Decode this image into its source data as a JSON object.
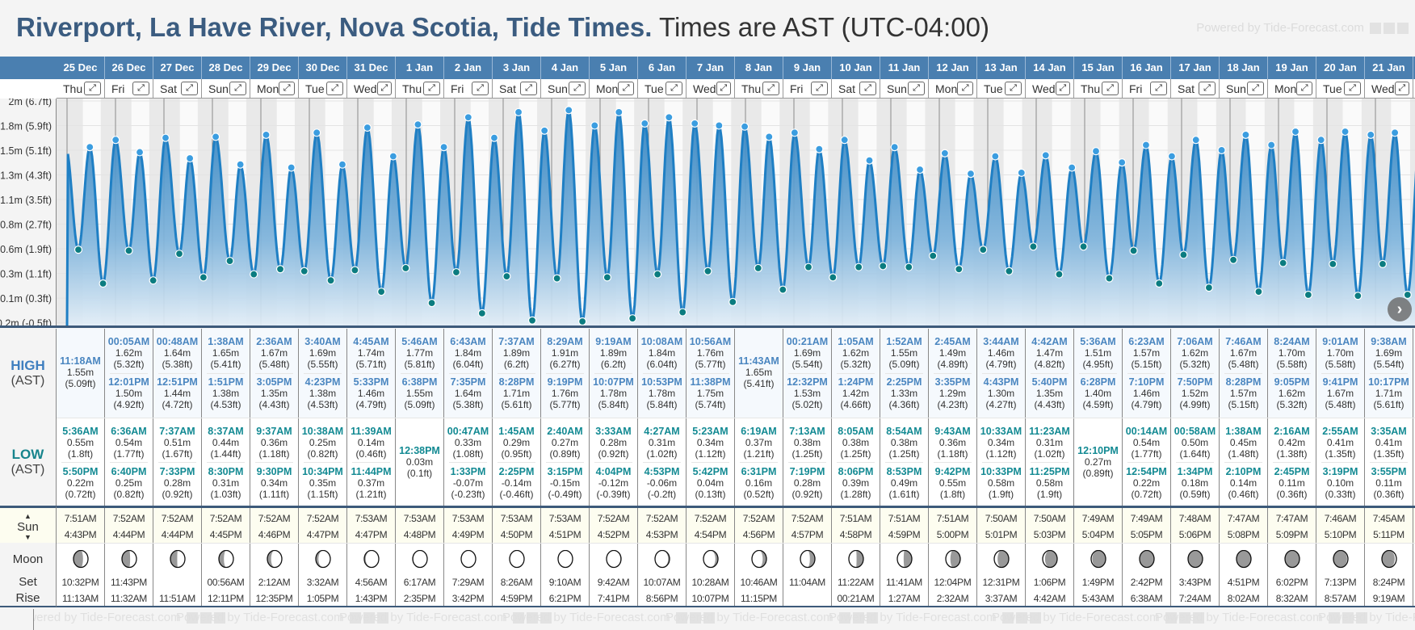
{
  "title": {
    "location": "Riverport, La Have River, Nova Scotia, Tide Times.",
    "timezone": "Times are AST (UTC-04:00)"
  },
  "powered": "Powered by Tide-Forecast.com",
  "labels": {
    "high": "HIGH",
    "high_sub": "(AST)",
    "low": "LOW",
    "low_sub": "(AST)",
    "sun": "Sun",
    "sun_up": "▲",
    "sun_down": "▼",
    "moon": "Moon",
    "set": "Set",
    "rise": "Rise",
    "expand": "⤢",
    "next": "›"
  },
  "colors": {
    "header": "#4a7fb0",
    "title": "#3b5c80",
    "high_time": "#4a86c0",
    "low_time": "#138a93",
    "curve": "#1f7fc4",
    "high_marker": "#3b9de0",
    "low_marker": "#0b7c80"
  },
  "y_axis": [
    "2m (6.7ft)",
    "1.8m (5.9ft)",
    "1.5m (5.1ft)",
    "1.3m (4.3ft)",
    "1.1m (3.5ft)",
    "0.8m (2.7ft)",
    "0.6m (1.9ft)",
    "0.3m (1.1ft)",
    "0.1m (0.3ft)",
    "-0.2m (-0.5ft)"
  ],
  "days": [
    {
      "date": "25 Dec",
      "dow": "Thu",
      "highs": [
        {
          "time": "11:18AM",
          "m": "1.55m",
          "ft": "5.09ft"
        }
      ],
      "lows": [
        {
          "time": "5:36AM",
          "m": "0.55m",
          "ft": "1.8ft"
        },
        {
          "time": "5:50PM",
          "m": "0.22m",
          "ft": "0.72ft"
        }
      ],
      "sun": {
        "rise": "7:51AM",
        "set": "4:43PM"
      },
      "moon": {
        "set": "10:32PM",
        "rise": "11:13AM",
        "phase": 0.2
      }
    },
    {
      "date": "26 Dec",
      "dow": "Fri",
      "highs": [
        {
          "time": "00:05AM",
          "m": "1.62m",
          "ft": "5.32ft"
        },
        {
          "time": "12:01PM",
          "m": "1.50m",
          "ft": "4.92ft"
        }
      ],
      "lows": [
        {
          "time": "6:36AM",
          "m": "0.54m",
          "ft": "1.77ft"
        },
        {
          "time": "6:40PM",
          "m": "0.25m",
          "ft": "0.82ft"
        }
      ],
      "sun": {
        "rise": "7:52AM",
        "set": "4:44PM"
      },
      "moon": {
        "set": "11:43PM",
        "rise": "11:32AM",
        "phase": 0.23
      }
    },
    {
      "date": "27 Dec",
      "dow": "Sat",
      "highs": [
        {
          "time": "00:48AM",
          "m": "1.64m",
          "ft": "5.38ft"
        },
        {
          "time": "12:51PM",
          "m": "1.44m",
          "ft": "4.72ft"
        }
      ],
      "lows": [
        {
          "time": "7:37AM",
          "m": "0.51m",
          "ft": "1.67ft"
        },
        {
          "time": "7:33PM",
          "m": "0.28m",
          "ft": "0.92ft"
        }
      ],
      "sun": {
        "rise": "7:52AM",
        "set": "4:44PM"
      },
      "moon": {
        "set": "",
        "rise": "11:51AM",
        "phase": 0.26
      }
    },
    {
      "date": "28 Dec",
      "dow": "Sun",
      "highs": [
        {
          "time": "1:38AM",
          "m": "1.65m",
          "ft": "5.41ft"
        },
        {
          "time": "1:51PM",
          "m": "1.38m",
          "ft": "4.53ft"
        }
      ],
      "lows": [
        {
          "time": "8:37AM",
          "m": "0.44m",
          "ft": "1.44ft"
        },
        {
          "time": "8:30PM",
          "m": "0.31m",
          "ft": "1.03ft"
        }
      ],
      "sun": {
        "rise": "7:52AM",
        "set": "4:45PM"
      },
      "moon": {
        "set": "00:56AM",
        "rise": "12:11PM",
        "phase": 0.3
      }
    },
    {
      "date": "29 Dec",
      "dow": "Mon",
      "highs": [
        {
          "time": "2:36AM",
          "m": "1.67m",
          "ft": "5.48ft"
        },
        {
          "time": "3:05PM",
          "m": "1.35m",
          "ft": "4.43ft"
        }
      ],
      "lows": [
        {
          "time": "9:37AM",
          "m": "0.36m",
          "ft": "1.18ft"
        },
        {
          "time": "9:30PM",
          "m": "0.34m",
          "ft": "1.11ft"
        }
      ],
      "sun": {
        "rise": "7:52AM",
        "set": "4:46PM"
      },
      "moon": {
        "set": "2:12AM",
        "rise": "12:35PM",
        "phase": 0.33
      }
    },
    {
      "date": "30 Dec",
      "dow": "Tue",
      "highs": [
        {
          "time": "3:40AM",
          "m": "1.69m",
          "ft": "5.55ft"
        },
        {
          "time": "4:23PM",
          "m": "1.38m",
          "ft": "4.53ft"
        }
      ],
      "lows": [
        {
          "time": "10:38AM",
          "m": "0.25m",
          "ft": "0.82ft"
        },
        {
          "time": "10:34PM",
          "m": "0.35m",
          "ft": "1.15ft"
        }
      ],
      "sun": {
        "rise": "7:52AM",
        "set": "4:47PM"
      },
      "moon": {
        "set": "3:32AM",
        "rise": "1:05PM",
        "phase": 0.36
      }
    },
    {
      "date": "31 Dec",
      "dow": "Wed",
      "highs": [
        {
          "time": "4:45AM",
          "m": "1.74m",
          "ft": "5.71ft"
        },
        {
          "time": "5:33PM",
          "m": "1.46m",
          "ft": "4.79ft"
        }
      ],
      "lows": [
        {
          "time": "11:39AM",
          "m": "0.14m",
          "ft": "0.46ft"
        },
        {
          "time": "11:44PM",
          "m": "0.37m",
          "ft": "1.21ft"
        }
      ],
      "sun": {
        "rise": "7:53AM",
        "set": "4:47PM"
      },
      "moon": {
        "set": "4:56AM",
        "rise": "1:43PM",
        "phase": 0.4
      }
    },
    {
      "date": "1 Jan",
      "dow": "Thu",
      "highs": [
        {
          "time": "5:46AM",
          "m": "1.77m",
          "ft": "5.81ft"
        },
        {
          "time": "6:38PM",
          "m": "1.55m",
          "ft": "5.09ft"
        }
      ],
      "lows": [
        {
          "time": "12:38PM",
          "m": "0.03m",
          "ft": "0.1ft"
        }
      ],
      "sun": {
        "rise": "7:53AM",
        "set": "4:48PM"
      },
      "moon": {
        "set": "6:17AM",
        "rise": "2:35PM",
        "phase": 0.43
      }
    },
    {
      "date": "2 Jan",
      "dow": "Fri",
      "highs": [
        {
          "time": "6:43AM",
          "m": "1.84m",
          "ft": "6.04ft"
        },
        {
          "time": "7:35PM",
          "m": "1.64m",
          "ft": "5.38ft"
        }
      ],
      "lows": [
        {
          "time": "00:47AM",
          "m": "0.33m",
          "ft": "1.08ft"
        },
        {
          "time": "1:33PM",
          "m": "-0.07m",
          "ft": "-0.23ft"
        }
      ],
      "sun": {
        "rise": "7:53AM",
        "set": "4:49PM"
      },
      "moon": {
        "set": "7:29AM",
        "rise": "3:42PM",
        "phase": 0.47
      }
    },
    {
      "date": "3 Jan",
      "dow": "Sat",
      "highs": [
        {
          "time": "7:37AM",
          "m": "1.89m",
          "ft": "6.2ft"
        },
        {
          "time": "8:28PM",
          "m": "1.71m",
          "ft": "5.61ft"
        }
      ],
      "lows": [
        {
          "time": "1:45AM",
          "m": "0.29m",
          "ft": "0.95ft"
        },
        {
          "time": "2:25PM",
          "m": "-0.14m",
          "ft": "-0.46ft"
        }
      ],
      "sun": {
        "rise": "7:53AM",
        "set": "4:50PM"
      },
      "moon": {
        "set": "8:26AM",
        "rise": "4:59PM",
        "phase": 0.5
      }
    },
    {
      "date": "4 Jan",
      "dow": "Sun",
      "highs": [
        {
          "time": "8:29AM",
          "m": "1.91m",
          "ft": "6.27ft"
        },
        {
          "time": "9:19PM",
          "m": "1.76m",
          "ft": "5.77ft"
        }
      ],
      "lows": [
        {
          "time": "2:40AM",
          "m": "0.27m",
          "ft": "0.89ft"
        },
        {
          "time": "3:15PM",
          "m": "-0.15m",
          "ft": "-0.49ft"
        }
      ],
      "sun": {
        "rise": "7:53AM",
        "set": "4:51PM"
      },
      "moon": {
        "set": "9:10AM",
        "rise": "6:21PM",
        "phase": 0.53
      }
    },
    {
      "date": "5 Jan",
      "dow": "Mon",
      "highs": [
        {
          "time": "9:19AM",
          "m": "1.89m",
          "ft": "6.2ft"
        },
        {
          "time": "10:07PM",
          "m": "1.78m",
          "ft": "5.84ft"
        }
      ],
      "lows": [
        {
          "time": "3:33AM",
          "m": "0.28m",
          "ft": "0.92ft"
        },
        {
          "time": "4:04PM",
          "m": "-0.12m",
          "ft": "-0.39ft"
        }
      ],
      "sun": {
        "rise": "7:52AM",
        "set": "4:52PM"
      },
      "moon": {
        "set": "9:42AM",
        "rise": "7:41PM",
        "phase": 0.57
      }
    },
    {
      "date": "6 Jan",
      "dow": "Tue",
      "highs": [
        {
          "time": "10:08AM",
          "m": "1.84m",
          "ft": "6.04ft"
        },
        {
          "time": "10:53PM",
          "m": "1.78m",
          "ft": "5.84ft"
        }
      ],
      "lows": [
        {
          "time": "4:27AM",
          "m": "0.31m",
          "ft": "1.02ft"
        },
        {
          "time": "4:53PM",
          "m": "-0.06m",
          "ft": "-0.2ft"
        }
      ],
      "sun": {
        "rise": "7:52AM",
        "set": "4:53PM"
      },
      "moon": {
        "set": "10:07AM",
        "rise": "8:56PM",
        "phase": 0.6
      }
    },
    {
      "date": "7 Jan",
      "dow": "Wed",
      "highs": [
        {
          "time": "10:56AM",
          "m": "1.76m",
          "ft": "5.77ft"
        },
        {
          "time": "11:38PM",
          "m": "1.75m",
          "ft": "5.74ft"
        }
      ],
      "lows": [
        {
          "time": "5:23AM",
          "m": "0.34m",
          "ft": "1.12ft"
        },
        {
          "time": "5:42PM",
          "m": "0.04m",
          "ft": "0.13ft"
        }
      ],
      "sun": {
        "rise": "7:52AM",
        "set": "4:54PM"
      },
      "moon": {
        "set": "10:28AM",
        "rise": "10:07PM",
        "phase": 0.64
      }
    },
    {
      "date": "8 Jan",
      "dow": "Thu",
      "highs": [
        {
          "time": "11:43AM",
          "m": "1.65m",
          "ft": "5.41ft"
        }
      ],
      "lows": [
        {
          "time": "6:19AM",
          "m": "0.37m",
          "ft": "1.21ft"
        },
        {
          "time": "6:31PM",
          "m": "0.16m",
          "ft": "0.52ft"
        }
      ],
      "sun": {
        "rise": "7:52AM",
        "set": "4:56PM"
      },
      "moon": {
        "set": "10:46AM",
        "rise": "11:15PM",
        "phase": 0.67
      }
    },
    {
      "date": "9 Jan",
      "dow": "Fri",
      "highs": [
        {
          "time": "00:21AM",
          "m": "1.69m",
          "ft": "5.54ft"
        },
        {
          "time": "12:32PM",
          "m": "1.53m",
          "ft": "5.02ft"
        }
      ],
      "lows": [
        {
          "time": "7:13AM",
          "m": "0.38m",
          "ft": "1.25ft"
        },
        {
          "time": "7:19PM",
          "m": "0.28m",
          "ft": "0.92ft"
        }
      ],
      "sun": {
        "rise": "7:52AM",
        "set": "4:57PM"
      },
      "moon": {
        "set": "11:04AM",
        "rise": "",
        "phase": 0.7
      }
    },
    {
      "date": "10 Jan",
      "dow": "Sat",
      "highs": [
        {
          "time": "1:05AM",
          "m": "1.62m",
          "ft": "5.32ft"
        },
        {
          "time": "1:24PM",
          "m": "1.42m",
          "ft": "4.66ft"
        }
      ],
      "lows": [
        {
          "time": "8:05AM",
          "m": "0.38m",
          "ft": "1.25ft"
        },
        {
          "time": "8:06PM",
          "m": "0.39m",
          "ft": "1.28ft"
        }
      ],
      "sun": {
        "rise": "7:51AM",
        "set": "4:58PM"
      },
      "moon": {
        "set": "11:22AM",
        "rise": "00:21AM",
        "phase": 0.74
      }
    },
    {
      "date": "11 Jan",
      "dow": "Sun",
      "highs": [
        {
          "time": "1:52AM",
          "m": "1.55m",
          "ft": "5.09ft"
        },
        {
          "time": "2:25PM",
          "m": "1.33m",
          "ft": "4.36ft"
        }
      ],
      "lows": [
        {
          "time": "8:54AM",
          "m": "0.38m",
          "ft": "1.25ft"
        },
        {
          "time": "8:53PM",
          "m": "0.49m",
          "ft": "1.61ft"
        }
      ],
      "sun": {
        "rise": "7:51AM",
        "set": "4:59PM"
      },
      "moon": {
        "set": "11:41AM",
        "rise": "1:27AM",
        "phase": 0.77
      }
    },
    {
      "date": "12 Jan",
      "dow": "Mon",
      "highs": [
        {
          "time": "2:45AM",
          "m": "1.49m",
          "ft": "4.89ft"
        },
        {
          "time": "3:35PM",
          "m": "1.29m",
          "ft": "4.23ft"
        }
      ],
      "lows": [
        {
          "time": "9:43AM",
          "m": "0.36m",
          "ft": "1.18ft"
        },
        {
          "time": "9:42PM",
          "m": "0.55m",
          "ft": "1.8ft"
        }
      ],
      "sun": {
        "rise": "7:51AM",
        "set": "5:00PM"
      },
      "moon": {
        "set": "12:04PM",
        "rise": "2:32AM",
        "phase": 0.81
      }
    },
    {
      "date": "13 Jan",
      "dow": "Tue",
      "highs": [
        {
          "time": "3:44AM",
          "m": "1.46m",
          "ft": "4.79ft"
        },
        {
          "time": "4:43PM",
          "m": "1.30m",
          "ft": "4.27ft"
        }
      ],
      "lows": [
        {
          "time": "10:33AM",
          "m": "0.34m",
          "ft": "1.12ft"
        },
        {
          "time": "10:33PM",
          "m": "0.58m",
          "ft": "1.9ft"
        }
      ],
      "sun": {
        "rise": "7:50AM",
        "set": "5:01PM"
      },
      "moon": {
        "set": "12:31PM",
        "rise": "3:37AM",
        "phase": 0.84
      }
    },
    {
      "date": "14 Jan",
      "dow": "Wed",
      "highs": [
        {
          "time": "4:42AM",
          "m": "1.47m",
          "ft": "4.82ft"
        },
        {
          "time": "5:40PM",
          "m": "1.35m",
          "ft": "4.43ft"
        }
      ],
      "lows": [
        {
          "time": "11:23AM",
          "m": "0.31m",
          "ft": "1.02ft"
        },
        {
          "time": "11:25PM",
          "m": "0.58m",
          "ft": "1.9ft"
        }
      ],
      "sun": {
        "rise": "7:50AM",
        "set": "5:03PM"
      },
      "moon": {
        "set": "1:06PM",
        "rise": "4:42AM",
        "phase": 0.87
      }
    },
    {
      "date": "15 Jan",
      "dow": "Thu",
      "highs": [
        {
          "time": "5:36AM",
          "m": "1.51m",
          "ft": "4.95ft"
        },
        {
          "time": "6:28PM",
          "m": "1.40m",
          "ft": "4.59ft"
        }
      ],
      "lows": [
        {
          "time": "12:10PM",
          "m": "0.27m",
          "ft": "0.89ft"
        }
      ],
      "sun": {
        "rise": "7:49AM",
        "set": "5:04PM"
      },
      "moon": {
        "set": "1:49PM",
        "rise": "5:43AM",
        "phase": 0.91
      }
    },
    {
      "date": "16 Jan",
      "dow": "Fri",
      "highs": [
        {
          "time": "6:23AM",
          "m": "1.57m",
          "ft": "5.15ft"
        },
        {
          "time": "7:10PM",
          "m": "1.46m",
          "ft": "4.79ft"
        }
      ],
      "lows": [
        {
          "time": "00:14AM",
          "m": "0.54m",
          "ft": "1.77ft"
        },
        {
          "time": "12:54PM",
          "m": "0.22m",
          "ft": "0.72ft"
        }
      ],
      "sun": {
        "rise": "7:49AM",
        "set": "5:05PM"
      },
      "moon": {
        "set": "2:42PM",
        "rise": "6:38AM",
        "phase": 0.94
      }
    },
    {
      "date": "17 Jan",
      "dow": "Sat",
      "highs": [
        {
          "time": "7:06AM",
          "m": "1.62m",
          "ft": "5.32ft"
        },
        {
          "time": "7:50PM",
          "m": "1.52m",
          "ft": "4.99ft"
        }
      ],
      "lows": [
        {
          "time": "00:58AM",
          "m": "0.50m",
          "ft": "1.64ft"
        },
        {
          "time": "1:34PM",
          "m": "0.18m",
          "ft": "0.59ft"
        }
      ],
      "sun": {
        "rise": "7:48AM",
        "set": "5:06PM"
      },
      "moon": {
        "set": "3:43PM",
        "rise": "7:24AM",
        "phase": 0.98
      }
    },
    {
      "date": "18 Jan",
      "dow": "Sun",
      "highs": [
        {
          "time": "7:46AM",
          "m": "1.67m",
          "ft": "5.48ft"
        },
        {
          "time": "8:28PM",
          "m": "1.57m",
          "ft": "5.15ft"
        }
      ],
      "lows": [
        {
          "time": "1:38AM",
          "m": "0.45m",
          "ft": "1.48ft"
        },
        {
          "time": "2:10PM",
          "m": "0.14m",
          "ft": "0.46ft"
        }
      ],
      "sun": {
        "rise": "7:47AM",
        "set": "5:08PM"
      },
      "moon": {
        "set": "4:51PM",
        "rise": "8:02AM",
        "phase": 0.01
      }
    },
    {
      "date": "19 Jan",
      "dow": "Mon",
      "highs": [
        {
          "time": "8:24AM",
          "m": "1.70m",
          "ft": "5.58ft"
        },
        {
          "time": "9:05PM",
          "m": "1.62m",
          "ft": "5.32ft"
        }
      ],
      "lows": [
        {
          "time": "2:16AM",
          "m": "0.42m",
          "ft": "1.38ft"
        },
        {
          "time": "2:45PM",
          "m": "0.11m",
          "ft": "0.36ft"
        }
      ],
      "sun": {
        "rise": "7:47AM",
        "set": "5:09PM"
      },
      "moon": {
        "set": "6:02PM",
        "rise": "8:32AM",
        "phase": 0.04
      }
    },
    {
      "date": "20 Jan",
      "dow": "Tue",
      "highs": [
        {
          "time": "9:01AM",
          "m": "1.70m",
          "ft": "5.58ft"
        },
        {
          "time": "9:41PM",
          "m": "1.67m",
          "ft": "5.48ft"
        }
      ],
      "lows": [
        {
          "time": "2:55AM",
          "m": "0.41m",
          "ft": "1.35ft"
        },
        {
          "time": "3:19PM",
          "m": "0.10m",
          "ft": "0.33ft"
        }
      ],
      "sun": {
        "rise": "7:46AM",
        "set": "5:10PM"
      },
      "moon": {
        "set": "7:13PM",
        "rise": "8:57AM",
        "phase": 0.08
      }
    },
    {
      "date": "21 Jan",
      "dow": "Wed",
      "highs": [
        {
          "time": "9:38AM",
          "m": "1.69m",
          "ft": "5.54ft"
        },
        {
          "time": "10:17PM",
          "m": "1.71m",
          "ft": "5.61ft"
        }
      ],
      "lows": [
        {
          "time": "3:35AM",
          "m": "0.41m",
          "ft": "1.35ft"
        },
        {
          "time": "3:55PM",
          "m": "0.11m",
          "ft": "0.36ft"
        }
      ],
      "sun": {
        "rise": "7:45AM",
        "set": "5:11PM"
      },
      "moon": {
        "set": "8:24PM",
        "rise": "9:19AM",
        "phase": 0.11
      }
    }
  ]
}
